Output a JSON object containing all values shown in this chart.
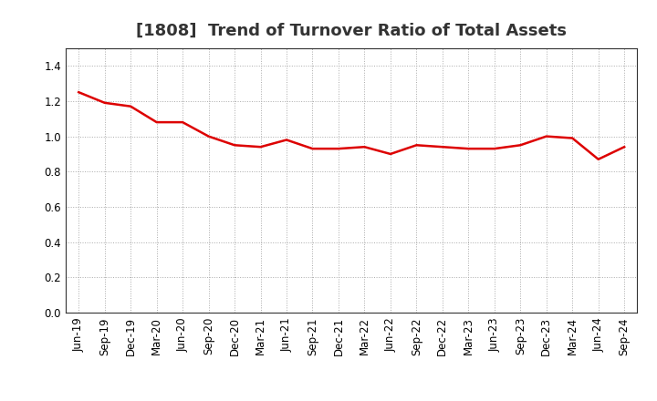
{
  "title": "[1808]  Trend of Turnover Ratio of Total Assets",
  "labels": [
    "Jun-19",
    "Sep-19",
    "Dec-19",
    "Mar-20",
    "Jun-20",
    "Sep-20",
    "Dec-20",
    "Mar-21",
    "Jun-21",
    "Sep-21",
    "Dec-21",
    "Mar-22",
    "Jun-22",
    "Sep-22",
    "Dec-22",
    "Mar-23",
    "Jun-23",
    "Sep-23",
    "Dec-23",
    "Mar-24",
    "Jun-24",
    "Sep-24"
  ],
  "values": [
    1.25,
    1.19,
    1.17,
    1.08,
    1.08,
    1.0,
    0.95,
    0.94,
    0.98,
    0.93,
    0.93,
    0.94,
    0.9,
    0.95,
    0.94,
    0.93,
    0.93,
    0.95,
    1.0,
    0.99,
    0.87,
    0.94
  ],
  "line_color": "#dd0000",
  "line_width": 1.8,
  "ylim": [
    0.0,
    1.5
  ],
  "yticks": [
    0.0,
    0.2,
    0.4,
    0.6,
    0.8,
    1.0,
    1.2,
    1.4
  ],
  "background_color": "#ffffff",
  "grid_color": "#aaaaaa",
  "title_fontsize": 13,
  "tick_fontsize": 8.5,
  "title_color": "#333333"
}
